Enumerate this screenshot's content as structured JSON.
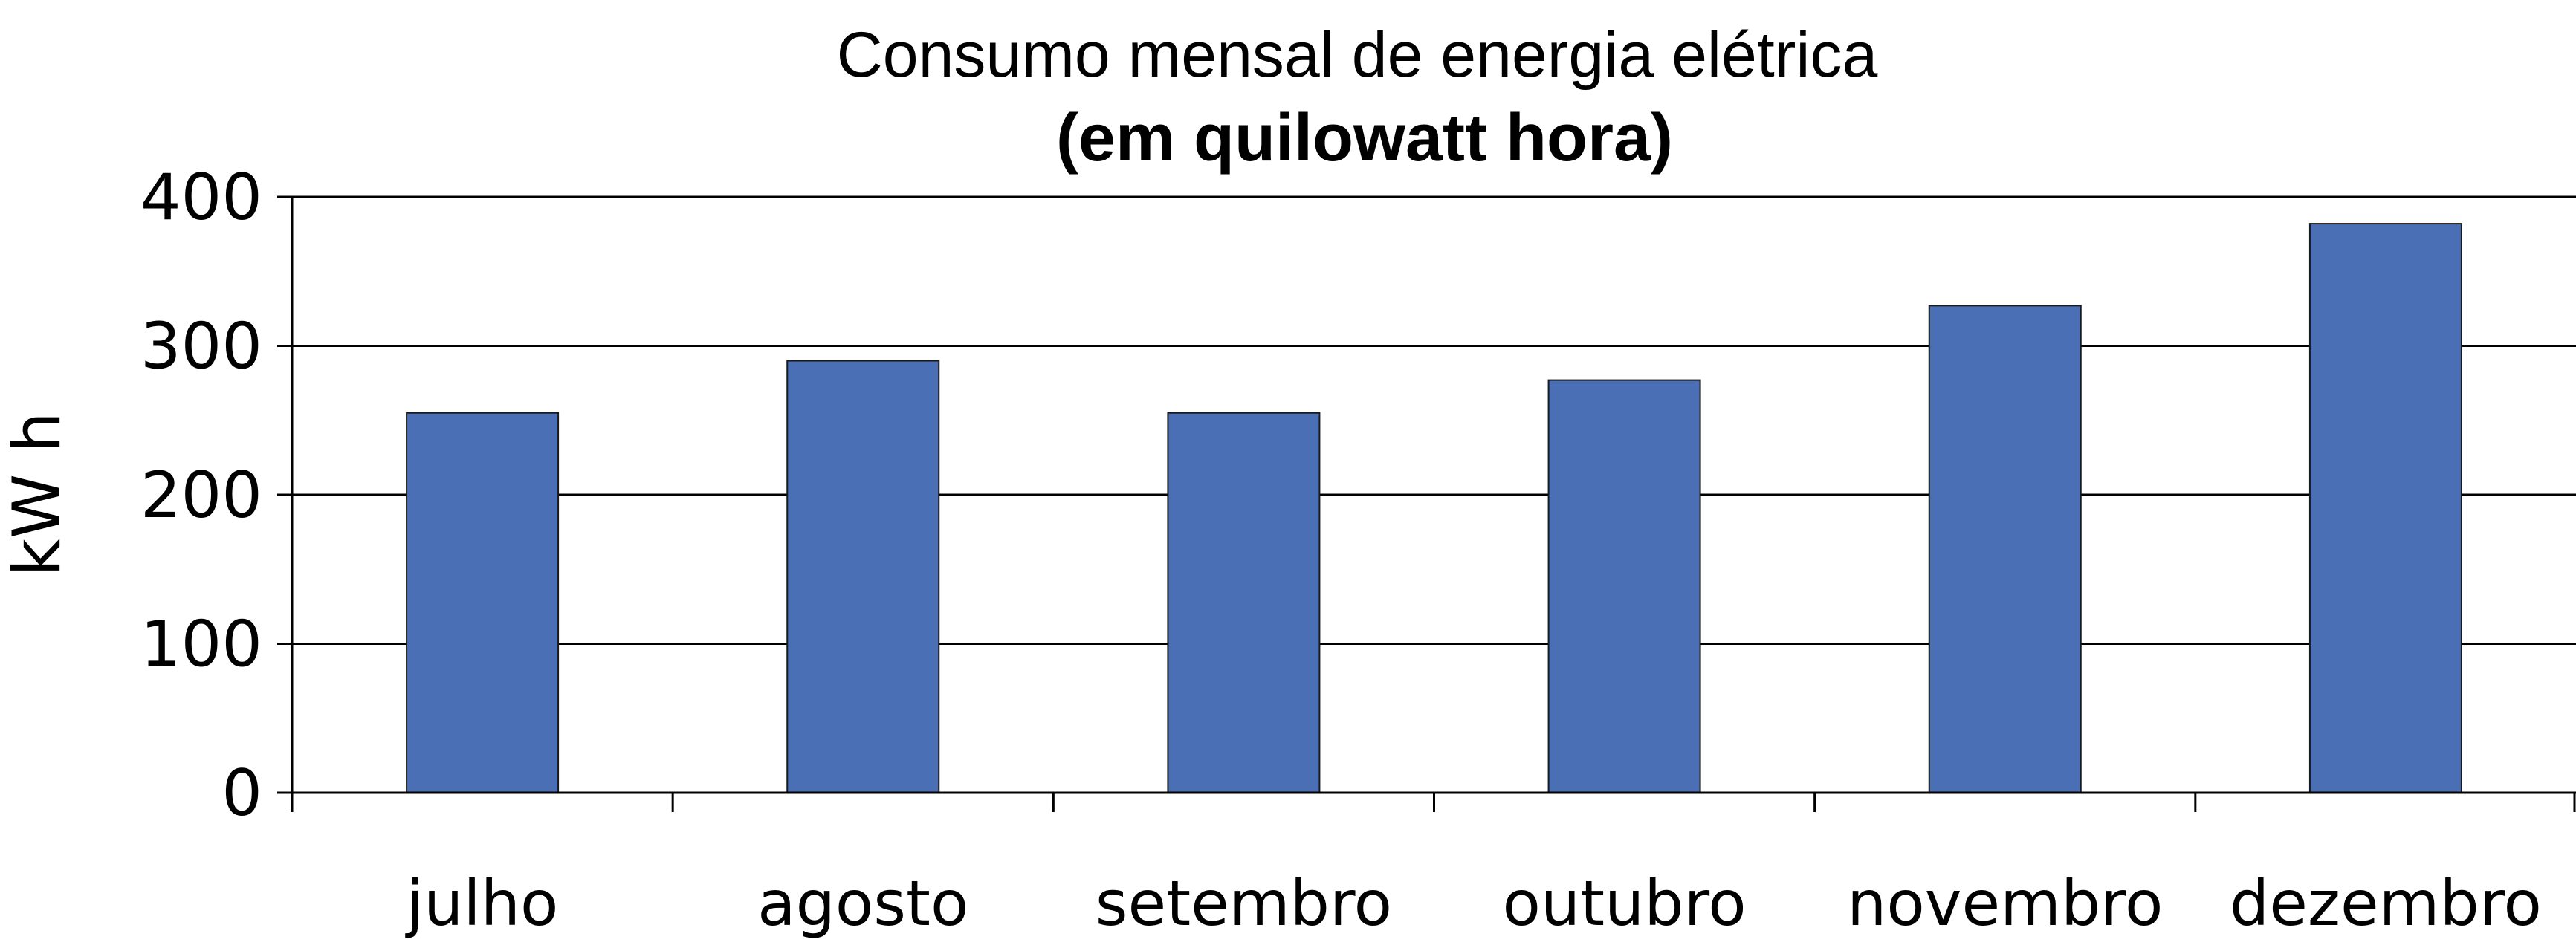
{
  "chart_data": {
    "type": "bar",
    "title": "Consumo mensal de energia elétrica",
    "subtitle": "(em quilowatt hora)",
    "xlabel": "",
    "ylabel": "kW h",
    "categories": [
      "julho",
      "agosto",
      "setembro",
      "outubro",
      "novembro",
      "dezembro"
    ],
    "values": [
      255,
      290,
      255,
      277,
      327,
      382
    ],
    "ylim": [
      0,
      400
    ],
    "yticks": [
      0,
      100,
      200,
      300,
      400
    ],
    "grid": true,
    "legend": "none",
    "bar_color": "#4a6fb5"
  }
}
